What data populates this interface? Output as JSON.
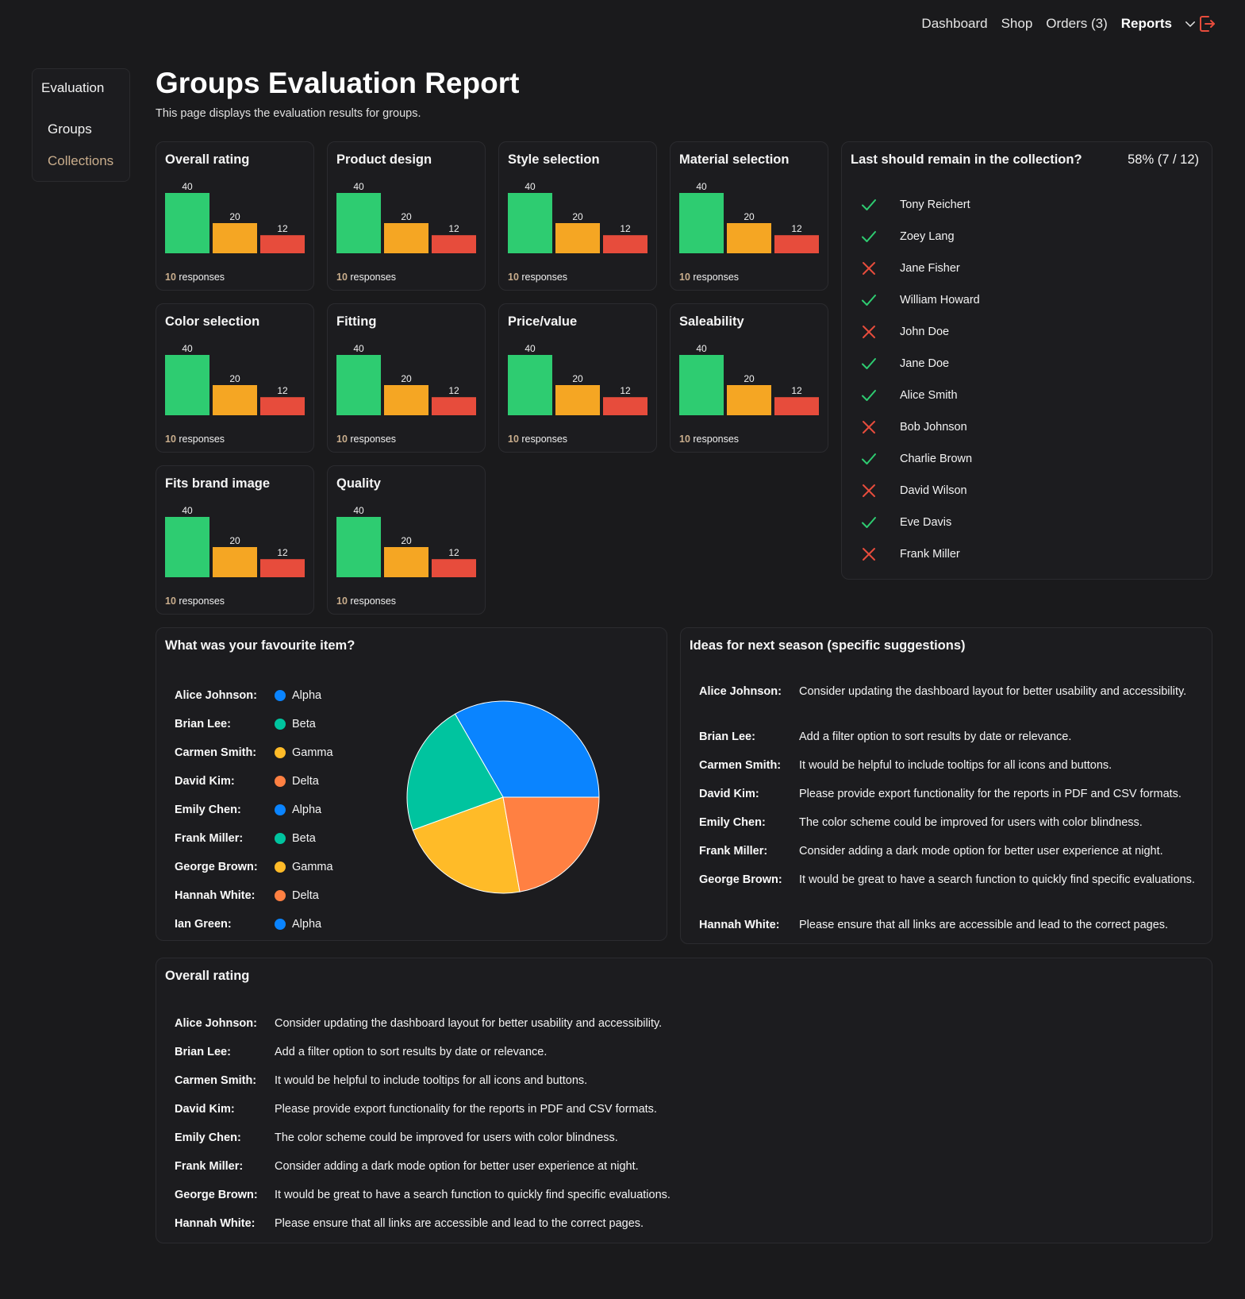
{
  "nav": {
    "dashboard": "Dashboard",
    "shop": "Shop",
    "orders": "Orders (3)",
    "reports": "Reports"
  },
  "sidebar": {
    "title": "Evaluation",
    "items": [
      {
        "label": "Groups"
      },
      {
        "label": "Collections"
      }
    ]
  },
  "page": {
    "title": "Groups Evaluation Report",
    "subtitle": "This page displays the evaluation results for groups."
  },
  "colors": {
    "good": "#2ecc71",
    "mid": "#f5a623",
    "bad": "#e74c3c",
    "accent": "#c9ad8c",
    "alpha": "#0a84ff",
    "beta": "#00c49f",
    "gamma": "#ffbb28",
    "delta": "#ff8042"
  },
  "rating_cards": [
    {
      "title": "Overall rating",
      "values": [
        40,
        20,
        12
      ],
      "responses_count": "10",
      "responses_label": " responses"
    },
    {
      "title": "Product design",
      "values": [
        40,
        20,
        12
      ],
      "responses_count": "10",
      "responses_label": " responses"
    },
    {
      "title": "Style selection",
      "values": [
        40,
        20,
        12
      ],
      "responses_count": "10",
      "responses_label": " responses"
    },
    {
      "title": "Material selection",
      "values": [
        40,
        20,
        12
      ],
      "responses_count": "10",
      "responses_label": " responses"
    },
    {
      "title": "Color selection",
      "values": [
        40,
        20,
        12
      ],
      "responses_count": "10",
      "responses_label": " responses"
    },
    {
      "title": "Fitting",
      "values": [
        40,
        20,
        12
      ],
      "responses_count": "10",
      "responses_label": " responses"
    },
    {
      "title": "Price/value",
      "values": [
        40,
        20,
        12
      ],
      "responses_count": "10",
      "responses_label": " responses"
    },
    {
      "title": "Saleability",
      "values": [
        40,
        20,
        12
      ],
      "responses_count": "10",
      "responses_label": " responses"
    },
    {
      "title": "Fits brand image",
      "values": [
        40,
        20,
        12
      ],
      "responses_count": "10",
      "responses_label": " responses"
    },
    {
      "title": "Quality",
      "values": [
        40,
        20,
        12
      ],
      "responses_count": "10",
      "responses_label": " responses"
    }
  ],
  "collection": {
    "title": "Last should remain in the collection?",
    "percent": "58% (7 / 12)",
    "people": [
      {
        "name": "Tony Reichert",
        "yes": true
      },
      {
        "name": "Zoey Lang",
        "yes": true
      },
      {
        "name": "Jane Fisher",
        "yes": false
      },
      {
        "name": "William Howard",
        "yes": true
      },
      {
        "name": "John Doe",
        "yes": false
      },
      {
        "name": "Jane Doe",
        "yes": true
      },
      {
        "name": "Alice Smith",
        "yes": true
      },
      {
        "name": "Bob Johnson",
        "yes": false
      },
      {
        "name": "Charlie Brown",
        "yes": true
      },
      {
        "name": "David Wilson",
        "yes": false
      },
      {
        "name": "Eve Davis",
        "yes": true
      },
      {
        "name": "Frank Miller",
        "yes": false
      }
    ]
  },
  "favourite": {
    "title": "What was your favourite item?",
    "answers": [
      {
        "name": "Alice Johnson:",
        "item": "Alpha",
        "color": "#0a84ff"
      },
      {
        "name": "Brian Lee:",
        "item": "Beta",
        "color": "#00c49f"
      },
      {
        "name": "Carmen Smith:",
        "item": "Gamma",
        "color": "#ffbb28"
      },
      {
        "name": "David Kim:",
        "item": "Delta",
        "color": "#ff8042"
      },
      {
        "name": "Emily Chen:",
        "item": "Alpha",
        "color": "#0a84ff"
      },
      {
        "name": "Frank Miller:",
        "item": "Beta",
        "color": "#00c49f"
      },
      {
        "name": "George Brown:",
        "item": "Gamma",
        "color": "#ffbb28"
      },
      {
        "name": "Hannah White:",
        "item": "Delta",
        "color": "#ff8042"
      },
      {
        "name": "Ian Green:",
        "item": "Alpha",
        "color": "#0a84ff"
      }
    ],
    "chart_data": {
      "type": "pie",
      "labels": [
        "Alpha",
        "Beta",
        "Gamma",
        "Delta"
      ],
      "values": [
        3,
        2,
        2,
        2
      ],
      "colors": [
        "#0a84ff",
        "#00c49f",
        "#ffbb28",
        "#ff8042"
      ]
    }
  },
  "ideas": {
    "title": "Ideas for next season (specific suggestions)",
    "rows": [
      {
        "name": "Alice Johnson:",
        "text": "Consider updating the dashboard layout for better usability and accessibility."
      },
      {
        "name": "Brian Lee:",
        "text": "Add a filter option to sort results by date or relevance."
      },
      {
        "name": "Carmen Smith:",
        "text": "It would be helpful to include tooltips for all icons and buttons."
      },
      {
        "name": "David Kim:",
        "text": "Please provide export functionality for the reports in PDF and CSV formats."
      },
      {
        "name": "Emily Chen:",
        "text": "The color scheme could be improved for users with color blindness."
      },
      {
        "name": "Frank Miller:",
        "text": "Consider adding a dark mode option for better user experience at night."
      },
      {
        "name": "George Brown:",
        "text": "It would be great to have a search function to quickly find specific evaluations."
      },
      {
        "name": "Hannah White:",
        "text": "Please ensure that all links are accessible and lead to the correct pages."
      }
    ]
  },
  "overall_comments": {
    "title": "Overall rating",
    "rows": [
      {
        "name": "Alice Johnson:",
        "text": "Consider updating the dashboard layout for better usability and accessibility."
      },
      {
        "name": "Brian Lee:",
        "text": "Add a filter option to sort results by date or relevance."
      },
      {
        "name": "Carmen Smith:",
        "text": "It would be helpful to include tooltips for all icons and buttons."
      },
      {
        "name": "David Kim:",
        "text": "Please provide export functionality for the reports in PDF and CSV formats."
      },
      {
        "name": "Emily Chen:",
        "text": "The color scheme could be improved for users with color blindness."
      },
      {
        "name": "Frank Miller:",
        "text": "Consider adding a dark mode option for better user experience at night."
      },
      {
        "name": "George Brown:",
        "text": "It would be great to have a search function to quickly find specific evaluations."
      },
      {
        "name": "Hannah White:",
        "text": "Please ensure that all links are accessible and lead to the correct pages."
      }
    ]
  }
}
